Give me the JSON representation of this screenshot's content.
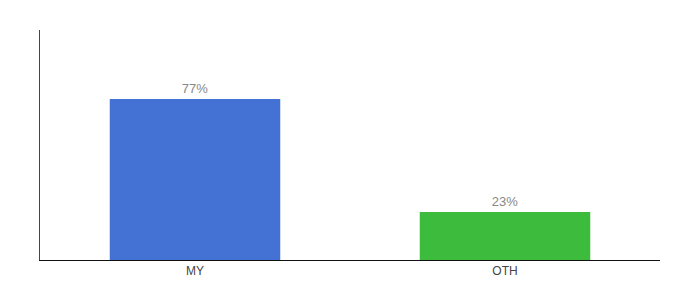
{
  "chart_data": {
    "type": "bar",
    "categories": [
      "MY",
      "OTH"
    ],
    "values": [
      77,
      23
    ],
    "value_labels": [
      "77%",
      "23%"
    ],
    "colors": [
      "#4472d4",
      "#3dbb3d"
    ],
    "data_labels": true,
    "ylim": [
      0,
      110
    ],
    "grid": false,
    "tick_labels": "x"
  }
}
